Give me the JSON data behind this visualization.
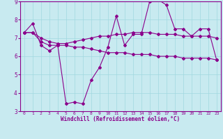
{
  "background_color": "#c8eaf0",
  "line_color": "#8b008b",
  "grid_color": "#a0d8e0",
  "axis_color": "#8b008b",
  "xlabel": "Windchill (Refroidissement éolien,°C)",
  "xlim": [
    -0.5,
    23.5
  ],
  "ylim": [
    3,
    9
  ],
  "yticks": [
    3,
    4,
    5,
    6,
    7,
    8,
    9
  ],
  "xticks": [
    0,
    1,
    2,
    3,
    4,
    5,
    6,
    7,
    8,
    9,
    10,
    11,
    12,
    13,
    14,
    15,
    16,
    17,
    18,
    19,
    20,
    21,
    22,
    23
  ],
  "series1_x": [
    0,
    1,
    2,
    3,
    4,
    5,
    6,
    7,
    8,
    9,
    10,
    11,
    12,
    13,
    14,
    15,
    16,
    17,
    18,
    19,
    20,
    21,
    22,
    23
  ],
  "series1_y": [
    7.3,
    7.8,
    6.6,
    6.3,
    6.6,
    3.4,
    3.5,
    3.4,
    4.7,
    5.4,
    6.5,
    8.2,
    6.6,
    7.2,
    7.2,
    9.0,
    9.1,
    8.8,
    7.5,
    7.5,
    7.1,
    7.5,
    7.5,
    5.8
  ],
  "series2_x": [
    0,
    1,
    2,
    3,
    4,
    5,
    6,
    7,
    8,
    9,
    10,
    11,
    12,
    13,
    14,
    15,
    16,
    17,
    18,
    19,
    20,
    21,
    22,
    23
  ],
  "series2_y": [
    7.3,
    7.3,
    6.8,
    6.6,
    6.6,
    6.6,
    6.5,
    6.5,
    6.4,
    6.3,
    6.2,
    6.2,
    6.2,
    6.1,
    6.1,
    6.1,
    6.0,
    6.0,
    6.0,
    5.9,
    5.9,
    5.9,
    5.9,
    5.8
  ],
  "series3_x": [
    0,
    1,
    2,
    3,
    4,
    5,
    6,
    7,
    8,
    9,
    10,
    11,
    12,
    13,
    14,
    15,
    16,
    17,
    18,
    19,
    20,
    21,
    22,
    23
  ],
  "series3_y": [
    7.3,
    7.3,
    7.0,
    6.8,
    6.7,
    6.7,
    6.8,
    6.9,
    7.0,
    7.1,
    7.1,
    7.2,
    7.2,
    7.3,
    7.3,
    7.3,
    7.2,
    7.2,
    7.2,
    7.1,
    7.1,
    7.1,
    7.1,
    7.0
  ]
}
